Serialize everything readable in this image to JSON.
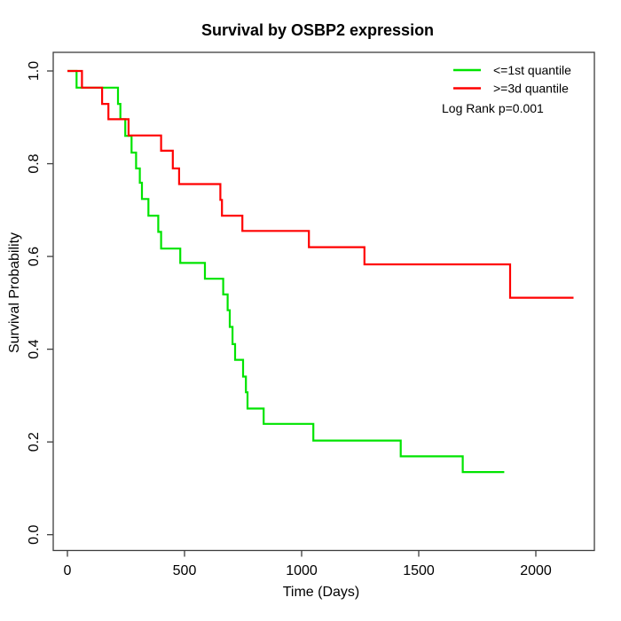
{
  "chart_data": {
    "type": "line",
    "variant": "kaplan-meier-step",
    "title": "Survival by OSBP2 expression",
    "xlabel": "Time (Days)",
    "ylabel": "Survival Probability",
    "xlim": [
      0,
      2250
    ],
    "ylim": [
      0,
      1
    ],
    "xticks": [
      0,
      500,
      1000,
      1500,
      2000
    ],
    "xtick_labels": [
      "0",
      "500",
      "1000",
      "1500",
      "2000"
    ],
    "yticks": [
      0,
      0.2,
      0.4,
      0.6,
      0.8,
      1.0
    ],
    "ytick_labels": [
      "0.0",
      "0.2",
      "0.4",
      "0.6",
      "0.8",
      "1.0"
    ],
    "grid": false,
    "legend_position": "top-right",
    "annotation": "Log Rank p=0.001",
    "series": [
      {
        "id": "first-quantile",
        "name": "<=1st quantile",
        "color": "#00E400",
        "end_time": 1865,
        "steps": [
          [
            0,
            1.0
          ],
          [
            39,
            0.964
          ],
          [
            216,
            0.929
          ],
          [
            226,
            0.896
          ],
          [
            247,
            0.86
          ],
          [
            274,
            0.824
          ],
          [
            293,
            0.79
          ],
          [
            309,
            0.759
          ],
          [
            318,
            0.724
          ],
          [
            346,
            0.688
          ],
          [
            388,
            0.653
          ],
          [
            400,
            0.617
          ],
          [
            482,
            0.586
          ],
          [
            587,
            0.552
          ],
          [
            665,
            0.518
          ],
          [
            684,
            0.484
          ],
          [
            693,
            0.448
          ],
          [
            705,
            0.411
          ],
          [
            716,
            0.377
          ],
          [
            750,
            0.341
          ],
          [
            762,
            0.307
          ],
          [
            769,
            0.272
          ],
          [
            838,
            0.239
          ],
          [
            1050,
            0.203
          ],
          [
            1423,
            0.169
          ],
          [
            1688,
            0.135
          ]
        ]
      },
      {
        "id": "third-quantile",
        "name": ">=3d quantile",
        "color": "#FF0000",
        "end_time": 2161,
        "steps": [
          [
            0,
            1.0
          ],
          [
            62,
            0.964
          ],
          [
            148,
            0.929
          ],
          [
            175,
            0.896
          ],
          [
            261,
            0.861
          ],
          [
            400,
            0.828
          ],
          [
            450,
            0.79
          ],
          [
            477,
            0.756
          ],
          [
            653,
            0.722
          ],
          [
            660,
            0.688
          ],
          [
            747,
            0.655
          ],
          [
            1031,
            0.62
          ],
          [
            1268,
            0.583
          ],
          [
            1890,
            0.511
          ]
        ]
      }
    ]
  }
}
